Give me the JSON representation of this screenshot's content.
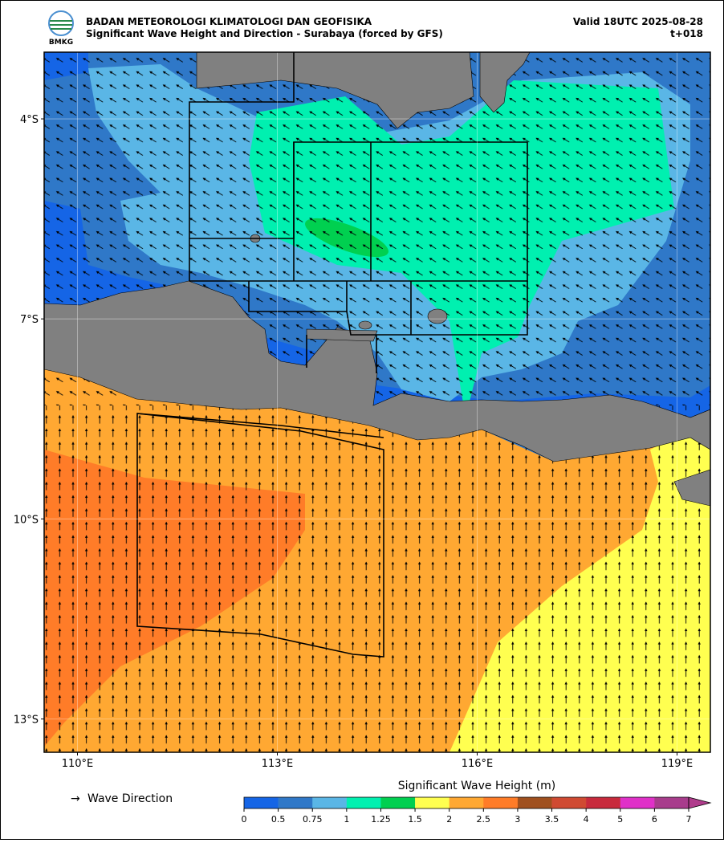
{
  "header": {
    "logo_text": "BMKG",
    "agency": "BADAN METEOROLOGI KLIMATOLOGI DAN GEOFISIKA",
    "title": "Significant Wave Height and Direction - Surabaya (forced by GFS)",
    "valid": "Valid 18UTC 2025-08-28",
    "lead": "t+018"
  },
  "map": {
    "xlim": [
      109.5,
      119.5
    ],
    "ylim": [
      -13.5,
      -3
    ],
    "xticks": [
      {
        "value": 110,
        "label": "110°E"
      },
      {
        "value": 113,
        "label": "113°E"
      },
      {
        "value": 116,
        "label": "116°E"
      },
      {
        "value": 119,
        "label": "119°E"
      }
    ],
    "yticks": [
      {
        "value": -4,
        "label": "4°S"
      },
      {
        "value": -7,
        "label": "7°S"
      },
      {
        "value": -10,
        "label": "10°S"
      },
      {
        "value": -13,
        "label": "13°S"
      }
    ],
    "grid": true
  },
  "legend": {
    "symbol": "→",
    "label": "Wave Direction"
  },
  "colorbar": {
    "label": "Significant Wave Height (m)",
    "levels": [
      0,
      0.5,
      0.75,
      1,
      1.25,
      1.5,
      2,
      2.5,
      3,
      3.5,
      4,
      5,
      6,
      7
    ],
    "colors": [
      "#1565e6",
      "#2f78c8",
      "#5ab6e6",
      "#00f0b0",
      "#00d050",
      "#ffff50",
      "#ffa832",
      "#ff7c28",
      "#a0501e",
      "#d04a32",
      "#c82a3c",
      "#e030c8",
      "#a83c8c"
    ],
    "extend_color": "#b03c8c"
  }
}
